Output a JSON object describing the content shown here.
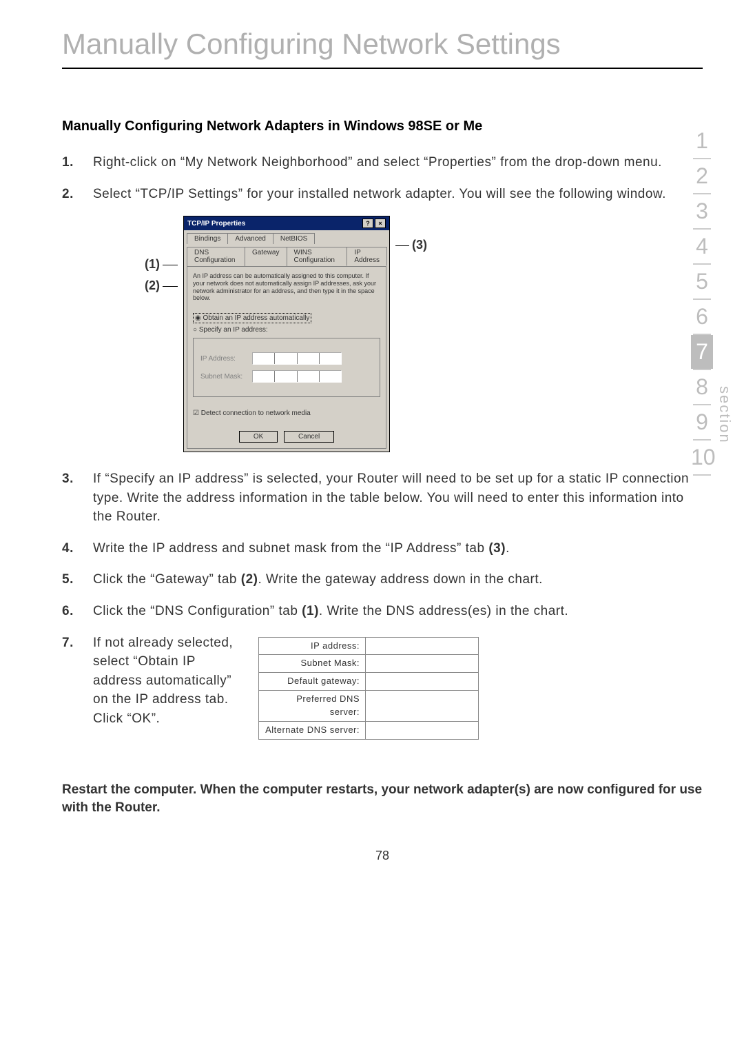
{
  "title": "Manually Configuring Network Settings",
  "subhead": "Manually Configuring Network Adapters in Windows 98SE or Me",
  "steps": [
    {
      "n": "1.",
      "text": "Right-click on “My Network Neighborhood” and select “Properties” from the drop-down menu."
    },
    {
      "n": "2.",
      "text": "Select “TCP/IP Settings” for your installed network adapter. You will see the following window."
    },
    {
      "n": "3.",
      "text": "If “Specify an IP address” is selected, your Router will need to be set up for a static IP connection type. Write the address information in the table below. You will need to enter this information into the Router."
    },
    {
      "n": "4.",
      "pre": "Write the IP address and subnet mask from the “IP Address” tab ",
      "boldtail": "(3)",
      "post": "."
    },
    {
      "n": "5.",
      "pre": "Click the “Gateway” tab ",
      "boldtail": "(2)",
      "post": ". Write the gateway address down in the chart."
    },
    {
      "n": "6.",
      "pre": "Click the “DNS Configuration” tab ",
      "boldtail": "(1)",
      "post": ". Write the DNS address(es) in the chart."
    },
    {
      "n": "7.",
      "text": "If not already selected, select “Obtain IP address automatically” on the IP address tab. Click “OK”."
    }
  ],
  "callouts": {
    "c1": "(1)",
    "c2": "(2)",
    "c3": "(3)"
  },
  "dialog": {
    "title": "TCP/IP Properties",
    "tabs_row1": [
      "Bindings",
      "Advanced",
      "NetBIOS"
    ],
    "tabs_row2": [
      "DNS Configuration",
      "Gateway",
      "WINS Configuration",
      "IP Address"
    ],
    "explain": "An IP address can be automatically assigned to this computer. If your network does not automatically assign IP addresses, ask your network administrator for an address, and then type it in the space below.",
    "radio_obtain": "Obtain an IP address automatically",
    "radio_specify": "Specify an IP address:",
    "lbl_ip": "IP Address:",
    "lbl_mask": "Subnet Mask:",
    "detect": "Detect connection to network media",
    "ok": "OK",
    "cancel": "Cancel"
  },
  "info_table": [
    "IP address:",
    "Subnet Mask:",
    "Default gateway:",
    "Preferred DNS server:",
    "Alternate DNS server:"
  ],
  "restart": "Restart the computer. When the computer restarts, your network adapter(s) are now configured for use with the Router.",
  "pagenum": "78",
  "nav": {
    "items": [
      "1",
      "2",
      "3",
      "4",
      "5",
      "6",
      "7",
      "8",
      "9",
      "10"
    ],
    "active": "7",
    "label": "section"
  },
  "colors": {
    "title_gray": "#b0b0b0",
    "nav_gray": "#bdbdbd",
    "titlebar": "#0a246a",
    "dialog_bg": "#d4d0c8"
  }
}
